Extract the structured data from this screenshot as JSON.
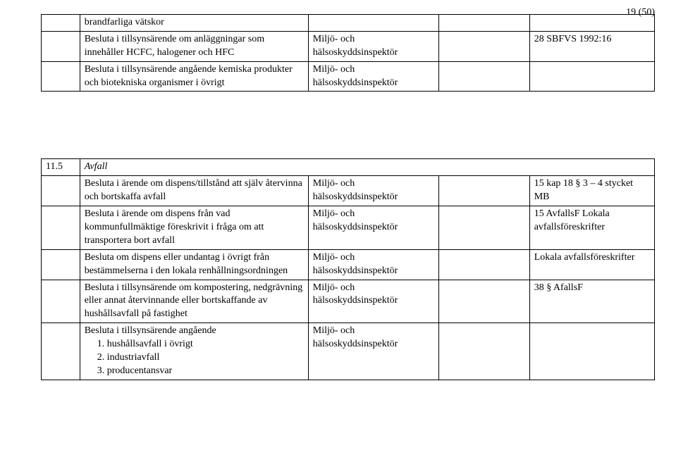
{
  "page": {
    "number_label": "19 (50)"
  },
  "table1": {
    "rows": [
      {
        "col_b": "brandfarliga vätskor",
        "col_c": "",
        "col_d": "",
        "col_e": ""
      },
      {
        "col_b": "Besluta i tillsynsärende om anläggningar som innehåller HCFC, halogener och HFC",
        "col_c": "Miljö- och hälsoskyddsinspektör",
        "col_d": "",
        "col_e": "28 SBFVS 1992:16"
      },
      {
        "col_b": "Besluta i tillsynsärende angående kemiska produkter och biotekniska organismer i övrigt",
        "col_c": "Miljö- och hälsoskyddsinspektör",
        "col_d": "",
        "col_e": ""
      }
    ]
  },
  "table2": {
    "section_number": "11.5",
    "section_title": "Avfall",
    "rows": [
      {
        "col_b": "Besluta i ärende om dispens/tillstånd att själv återvinna och bortskaffa avfall",
        "col_c": "Miljö- och hälsoskyddsinspektör",
        "col_d": "",
        "col_e": "15 kap 18 § 3 – 4 stycket MB"
      },
      {
        "col_b": "Besluta i ärende om dispens från vad kommunfullmäktige föreskrivit i fråga om att transportera bort avfall",
        "col_c": "Miljö- och hälsoskyddsinspektör",
        "col_d": "",
        "col_e": "15 AvfallsF Lokala avfallsföreskrifter"
      },
      {
        "col_b": "Besluta om dispens eller undantag i övrigt från bestämmelserna i den lokala renhållningsordningen",
        "col_c": "Miljö- och hälsoskyddsinspektör",
        "col_d": "",
        "col_e": "Lokala avfallsföreskrifter"
      },
      {
        "col_b": "Besluta i tillsynsärende om kompostering, nedgrävning eller annat återvinnande eller bortskaffande av hushållsavfall på fastighet",
        "col_c": "Miljö- och hälsoskyddsinspektör",
        "col_d": "",
        "col_e": "38 § AfallsF"
      },
      {
        "col_b_intro": "Besluta i tillsynsärende angående",
        "col_b_items": [
          "1.  hushållsavfall i övrigt",
          "2.  industriavfall",
          "3.  producentansvar"
        ],
        "col_c": "Miljö- och hälsoskyddsinspektör",
        "col_d": "",
        "col_e": ""
      }
    ]
  },
  "style": {
    "font_family": "Times New Roman",
    "font_size_pt": 11,
    "text_color": "#000000",
    "background_color": "#ffffff",
    "border_color": "#000000"
  }
}
